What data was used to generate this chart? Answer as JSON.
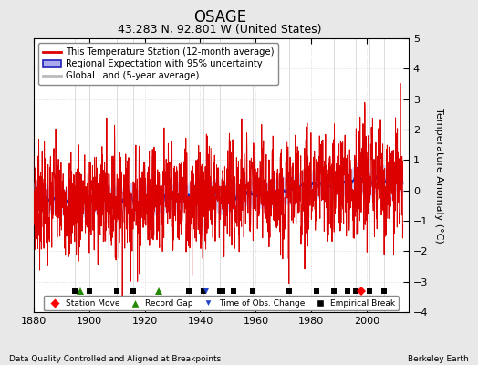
{
  "title": "OSAGE",
  "subtitle": "43.283 N, 92.801 W (United States)",
  "ylabel": "Temperature Anomaly (°C)",
  "footer_left": "Data Quality Controlled and Aligned at Breakpoints",
  "footer_right": "Berkeley Earth",
  "xlim": [
    1880,
    2015
  ],
  "ylim": [
    -4,
    5
  ],
  "yticks": [
    -4,
    -3,
    -2,
    -1,
    0,
    1,
    2,
    3,
    4,
    5
  ],
  "xticks": [
    1880,
    1900,
    1920,
    1940,
    1960,
    1980,
    2000
  ],
  "background_color": "#e8e8e8",
  "plot_bg_color": "#ffffff",
  "station_moves": [
    1998
  ],
  "record_gaps": [
    1897,
    1925
  ],
  "obs_changes": [
    1942
  ],
  "empirical_breaks": [
    1895,
    1900,
    1910,
    1916,
    1936,
    1941,
    1947,
    1948,
    1952,
    1959,
    1972,
    1982,
    1988,
    1993,
    1996,
    2001,
    2006
  ],
  "legend_labels": {
    "station": "This Temperature Station (12-month average)",
    "regional": "Regional Expectation with 95% uncertainty",
    "global": "Global Land (5-year average)"
  },
  "line_colors": {
    "station": "#dd0000",
    "regional_line": "#2222bb",
    "regional_fill": "#aaaaee",
    "global": "#bbbbbb"
  },
  "marker_y": -3.3
}
